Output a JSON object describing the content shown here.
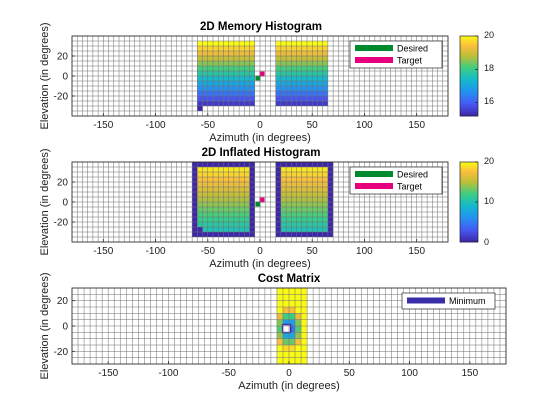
{
  "chart_data": [
    {
      "type": "heatmap",
      "title": "2D Memory Histogram",
      "xlabel": "Azimuth (in degrees)",
      "ylabel": "Elevation (in degrees)",
      "xlim": [
        -180,
        180
      ],
      "ylim": [
        -40,
        40
      ],
      "xticks": [
        "-150",
        "-100",
        "-50",
        "0",
        "50",
        "100",
        "150"
      ],
      "yticks": [
        "-20",
        "0",
        "20"
      ],
      "grid_step_deg": 5,
      "blocks": [
        {
          "az": [
            -60,
            -5
          ],
          "el": [
            -30,
            35
          ],
          "low": 15.5,
          "high": 20,
          "notch": true
        },
        {
          "az": [
            15,
            65
          ],
          "el": [
            -30,
            35
          ],
          "low": 15.5,
          "high": 20,
          "notch": false
        }
      ],
      "markers": [
        {
          "name": "Desired",
          "az": -2,
          "el": -2,
          "color": "#008a2e"
        },
        {
          "name": "Target",
          "az": 2,
          "el": 2,
          "color": "#e6007e"
        }
      ],
      "legend": {
        "position": "top-right",
        "entries": [
          {
            "label": "Desired",
            "color": "#008a2e"
          },
          {
            "label": "Target",
            "color": "#e6007e"
          }
        ]
      },
      "colorbar": {
        "range": [
          15.2,
          20
        ],
        "ticks": [
          "16",
          "18",
          "20"
        ]
      }
    },
    {
      "type": "heatmap",
      "title": "2D Inflated Histogram",
      "xlabel": "Azimuth (in degrees)",
      "ylabel": "Elevation (in degrees)",
      "xlim": [
        -180,
        180
      ],
      "ylim": [
        -40,
        40
      ],
      "xticks": [
        "-150",
        "-100",
        "-50",
        "0",
        "50",
        "100",
        "150"
      ],
      "yticks": [
        "-20",
        "0",
        "20"
      ],
      "grid_step_deg": 5,
      "blocks": [
        {
          "az": [
            -65,
            -5
          ],
          "el": [
            -35,
            40
          ],
          "low": 10,
          "high": 20,
          "border_value": 0,
          "notch": true
        },
        {
          "az": [
            15,
            70
          ],
          "el": [
            -35,
            40
          ],
          "low": 10,
          "high": 20,
          "border_value": 0,
          "notch": false
        }
      ],
      "markers": [
        {
          "name": "Desired",
          "az": -2,
          "el": -2,
          "color": "#008a2e"
        },
        {
          "name": "Target",
          "az": 2,
          "el": 2,
          "color": "#e6007e"
        }
      ],
      "legend": {
        "position": "top-right",
        "entries": [
          {
            "label": "Desired",
            "color": "#008a2e"
          },
          {
            "label": "Target",
            "color": "#e6007e"
          }
        ]
      },
      "colorbar": {
        "range": [
          0,
          20
        ],
        "ticks": [
          "0",
          "10",
          "20"
        ]
      }
    },
    {
      "type": "heatmap",
      "title": "Cost Matrix",
      "xlabel": "Azimuth (in degrees)",
      "ylabel": "Elevation (in degrees)",
      "xlim": [
        -180,
        180
      ],
      "ylim": [
        -30,
        30
      ],
      "xticks": [
        "-150",
        "-100",
        "-50",
        "0",
        "50",
        "100",
        "150"
      ],
      "yticks": [
        "-20",
        "0",
        "20"
      ],
      "grid_step_deg": 5,
      "cost_region": {
        "az": [
          -10,
          15
        ],
        "el": [
          -30,
          30
        ],
        "min_at": [
          0,
          -2
        ]
      },
      "minimum": {
        "name": "Minimum",
        "az": -2,
        "el": -2
      },
      "legend": {
        "position": "top-right",
        "entries": [
          {
            "label": "Minimum",
            "color": "#3a2ea8"
          }
        ]
      }
    }
  ]
}
